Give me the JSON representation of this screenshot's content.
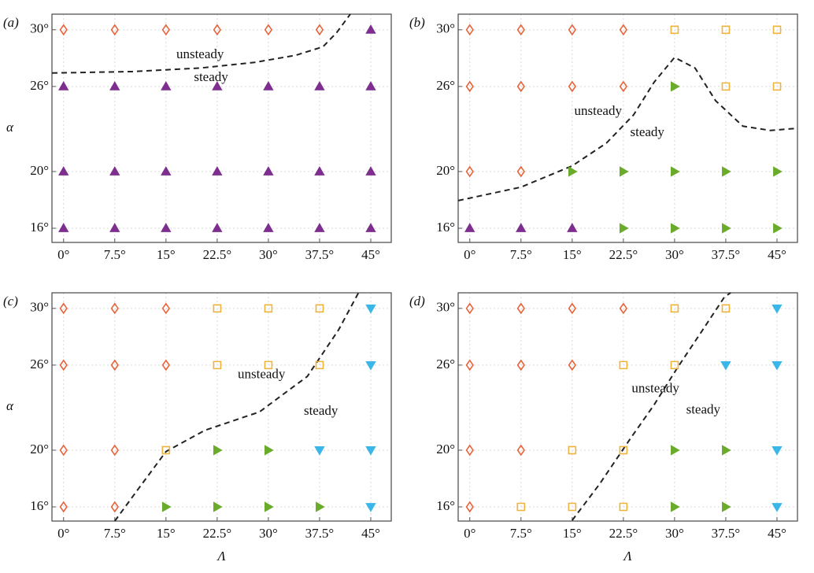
{
  "chart_data": [
    {
      "type": "scatter",
      "label": "(a)",
      "ylabel": "α",
      "xlim": [
        -1.7,
        48
      ],
      "ylim": [
        15,
        31.1
      ],
      "xticks": [
        {
          "value": 0,
          "label": "0°"
        },
        {
          "value": 7.5,
          "label": "7.5°"
        },
        {
          "value": 15,
          "label": "15°"
        },
        {
          "value": 22.5,
          "label": "22.5°"
        },
        {
          "value": 30,
          "label": "30°"
        },
        {
          "value": 37.5,
          "label": "37.5°"
        },
        {
          "value": 45,
          "label": "45°"
        }
      ],
      "yticks": [
        {
          "value": 16,
          "label": "16°"
        },
        {
          "value": 20,
          "label": "20°"
        },
        {
          "value": 26,
          "label": "26°"
        },
        {
          "value": 30,
          "label": "30°"
        }
      ],
      "grid": true,
      "series": [
        {
          "marker": "diamond",
          "color": "#e8643a",
          "x": [
            0,
            7.5,
            15,
            22.5,
            30,
            37.5
          ],
          "y": [
            30,
            30,
            30,
            30,
            30,
            30
          ]
        },
        {
          "marker": "triangle-up",
          "color": "#7d2e8f",
          "x": [
            45,
            0,
            7.5,
            15,
            22.5,
            30,
            37.5,
            45,
            0,
            7.5,
            15,
            22.5,
            30,
            37.5,
            45,
            0,
            7.5,
            15,
            22.5,
            30,
            37.5,
            45
          ],
          "y": [
            30,
            26,
            26,
            26,
            26,
            26,
            26,
            26,
            20,
            20,
            20,
            20,
            20,
            20,
            20,
            16,
            16,
            16,
            16,
            16,
            16,
            16
          ]
        }
      ],
      "boundary": {
        "x": [
          -1.7,
          10,
          20,
          28,
          34,
          38,
          40,
          42
        ],
        "y": [
          26.95,
          27.05,
          27.3,
          27.7,
          28.2,
          28.8,
          29.8,
          31.1
        ]
      },
      "annotations": [
        "unsteady",
        "steady"
      ]
    },
    {
      "type": "scatter",
      "label": "(b)",
      "xlim": [
        -1.7,
        48
      ],
      "ylim": [
        15,
        31.1
      ],
      "xticks": [
        {
          "value": 0,
          "label": "0°"
        },
        {
          "value": 7.5,
          "label": "7.5°"
        },
        {
          "value": 15,
          "label": "15°"
        },
        {
          "value": 22.5,
          "label": "22.5°"
        },
        {
          "value": 30,
          "label": "30°"
        },
        {
          "value": 37.5,
          "label": "37.5°"
        },
        {
          "value": 45,
          "label": "45°"
        }
      ],
      "yticks": [
        {
          "value": 16,
          "label": "16°"
        },
        {
          "value": 20,
          "label": "20°"
        },
        {
          "value": 26,
          "label": "26°"
        },
        {
          "value": 30,
          "label": "30°"
        }
      ],
      "grid": true,
      "series": [
        {
          "marker": "diamond",
          "color": "#e8643a",
          "x": [
            0,
            7.5,
            15,
            22.5,
            0,
            7.5,
            15,
            22.5,
            0,
            7.5
          ],
          "y": [
            30,
            30,
            30,
            30,
            26,
            26,
            26,
            26,
            20,
            20
          ]
        },
        {
          "marker": "square",
          "color": "#f0b43c",
          "x": [
            30,
            37.5,
            45,
            37.5,
            45
          ],
          "y": [
            30,
            30,
            30,
            26,
            26
          ]
        },
        {
          "marker": "triangle-right",
          "color": "#6aab2b",
          "x": [
            30,
            15,
            22.5,
            30,
            37.5,
            45,
            22.5,
            30,
            37.5,
            45
          ],
          "y": [
            26,
            20,
            20,
            20,
            20,
            20,
            16,
            16,
            16,
            16
          ]
        },
        {
          "marker": "triangle-up",
          "color": "#7d2e8f",
          "x": [
            0,
            7.5,
            15
          ],
          "y": [
            16,
            16,
            16
          ]
        }
      ],
      "boundary": {
        "x": [
          -1.7,
          7.5,
          15,
          20,
          24,
          27,
          30,
          33,
          36,
          40,
          44,
          48
        ],
        "y": [
          17.95,
          18.9,
          20.4,
          22,
          24,
          26.3,
          28.05,
          27.3,
          25,
          23.2,
          22.9,
          23.05
        ]
      },
      "annotations": [
        "unsteady",
        "steady"
      ]
    },
    {
      "type": "scatter",
      "label": "(c)",
      "ylabel": "α",
      "xlabel": "Λ",
      "xlim": [
        -1.7,
        48
      ],
      "ylim": [
        15,
        31.1
      ],
      "xticks": [
        {
          "value": 0,
          "label": "0°"
        },
        {
          "value": 7.5,
          "label": "7.5°"
        },
        {
          "value": 15,
          "label": "15°"
        },
        {
          "value": 22.5,
          "label": "22.5°"
        },
        {
          "value": 30,
          "label": "30°"
        },
        {
          "value": 37.5,
          "label": "37.5°"
        },
        {
          "value": 45,
          "label": "45°"
        }
      ],
      "yticks": [
        {
          "value": 16,
          "label": "16°"
        },
        {
          "value": 20,
          "label": "20°"
        },
        {
          "value": 26,
          "label": "26°"
        },
        {
          "value": 30,
          "label": "30°"
        }
      ],
      "grid": true,
      "series": [
        {
          "marker": "diamond",
          "color": "#e8643a",
          "x": [
            0,
            7.5,
            15,
            0,
            7.5,
            15,
            0,
            7.5,
            0,
            7.5
          ],
          "y": [
            30,
            30,
            30,
            26,
            26,
            26,
            20,
            20,
            16,
            16
          ]
        },
        {
          "marker": "square",
          "color": "#f0b43c",
          "x": [
            22.5,
            30,
            37.5,
            22.5,
            30,
            37.5,
            15
          ],
          "y": [
            30,
            30,
            30,
            26,
            26,
            26,
            20
          ]
        },
        {
          "marker": "triangle-right",
          "color": "#6aab2b",
          "x": [
            22.5,
            30,
            15,
            22.5,
            30,
            37.5
          ],
          "y": [
            20,
            20,
            16,
            16,
            16,
            16
          ]
        },
        {
          "marker": "triangle-down",
          "color": "#3ab6e8",
          "x": [
            45,
            45,
            37.5,
            45,
            45
          ],
          "y": [
            30,
            26,
            20,
            20,
            16
          ]
        }
      ],
      "boundary": {
        "x": [
          7.5,
          11,
          15,
          20.7,
          28.7,
          35.7,
          40.3,
          43.2
        ],
        "y": [
          15,
          17.3,
          19.9,
          21.4,
          22.7,
          25.2,
          28.5,
          31.1
        ]
      },
      "annotations": [
        "unsteady",
        "steady"
      ]
    },
    {
      "type": "scatter",
      "label": "(d)",
      "xlabel": "Λ",
      "xlim": [
        -1.7,
        48
      ],
      "ylim": [
        15,
        31.1
      ],
      "xticks": [
        {
          "value": 0,
          "label": "0°"
        },
        {
          "value": 7.5,
          "label": "7.5°"
        },
        {
          "value": 15,
          "label": "15°"
        },
        {
          "value": 22.5,
          "label": "22.5°"
        },
        {
          "value": 30,
          "label": "30°"
        },
        {
          "value": 37.5,
          "label": "37.5°"
        },
        {
          "value": 45,
          "label": "45°"
        }
      ],
      "yticks": [
        {
          "value": 16,
          "label": "16°"
        },
        {
          "value": 20,
          "label": "20°"
        },
        {
          "value": 26,
          "label": "26°"
        },
        {
          "value": 30,
          "label": "30°"
        }
      ],
      "grid": true,
      "series": [
        {
          "marker": "diamond",
          "color": "#e8643a",
          "x": [
            0,
            7.5,
            15,
            22.5,
            0,
            7.5,
            15,
            0,
            7.5,
            0
          ],
          "y": [
            30,
            30,
            30,
            30,
            26,
            26,
            26,
            20,
            20,
            16
          ]
        },
        {
          "marker": "square",
          "color": "#f0b43c",
          "x": [
            30,
            37.5,
            22.5,
            30,
            15,
            22.5,
            7.5,
            15,
            22.5
          ],
          "y": [
            30,
            30,
            26,
            26,
            20,
            20,
            16,
            16,
            16
          ]
        },
        {
          "marker": "triangle-right",
          "color": "#6aab2b",
          "x": [
            30,
            37.5,
            30,
            37.5
          ],
          "y": [
            20,
            20,
            16,
            16
          ]
        },
        {
          "marker": "triangle-down",
          "color": "#3ab6e8",
          "x": [
            45,
            37.5,
            45,
            45,
            45
          ],
          "y": [
            30,
            26,
            26,
            20,
            16
          ]
        }
      ],
      "boundary": {
        "x": [
          15,
          19,
          23.5,
          27,
          30.4,
          34,
          37.3,
          38.2
        ],
        "y": [
          15.05,
          17.6,
          20.8,
          23.2,
          25.8,
          28.4,
          30.8,
          31.1
        ]
      },
      "annotations": [
        "unsteady",
        "steady"
      ]
    }
  ]
}
